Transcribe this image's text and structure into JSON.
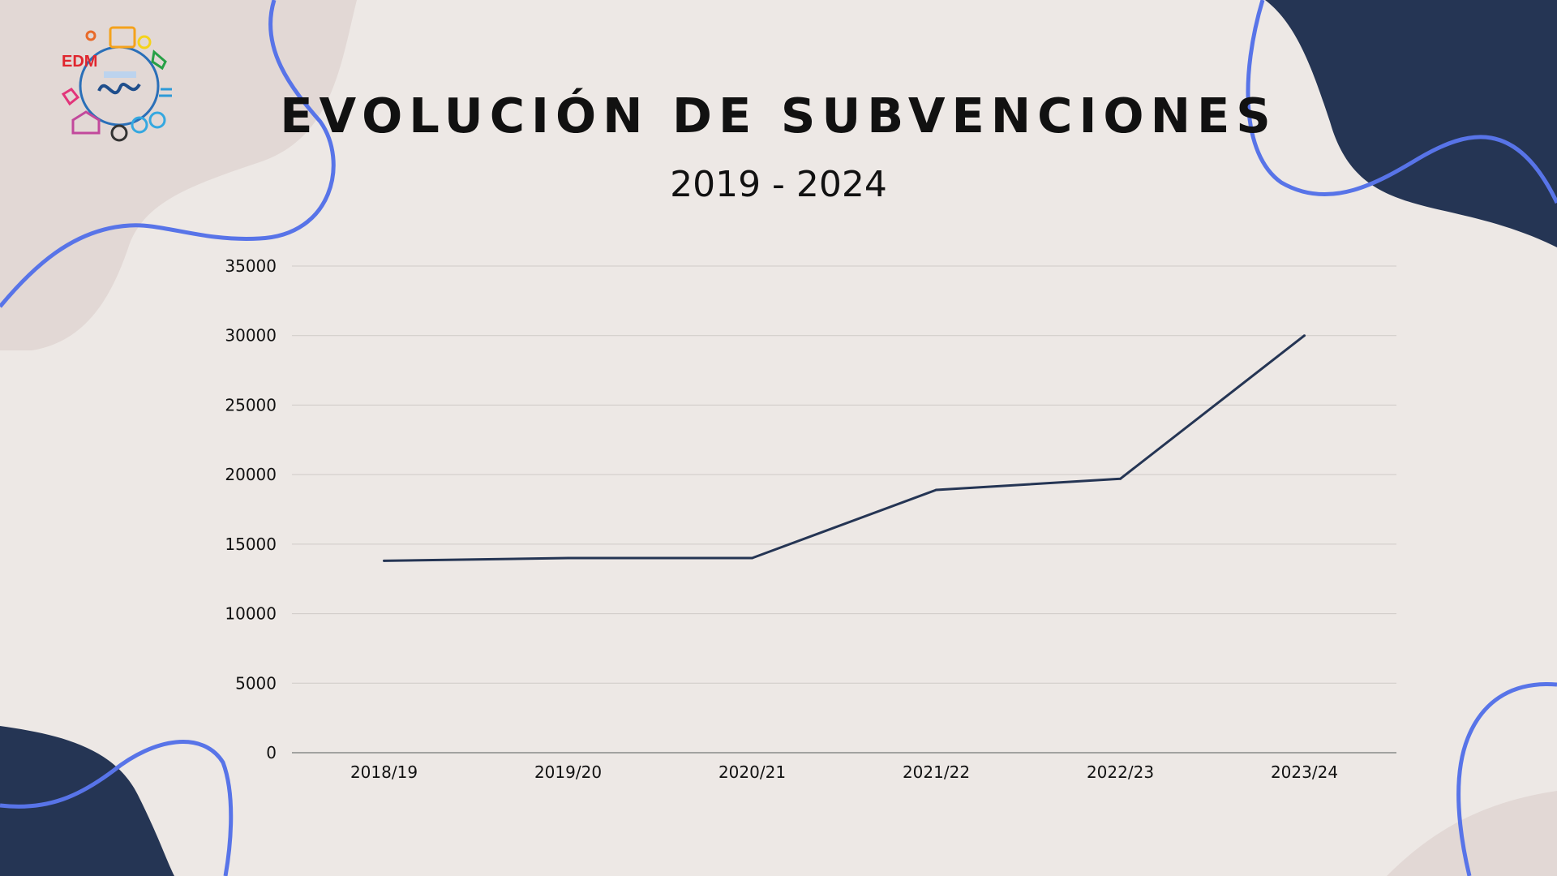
{
  "title": "EVOLUCIÓN DE SUBVENCIONES",
  "subtitle": "2019 - 2024",
  "logo": {
    "icon": "edm-sports-logo-icon",
    "text": "EDM"
  },
  "colors": {
    "background": "#ede8e5",
    "navy": "#253554",
    "accent_blue": "#5874e8",
    "blob_pink": "#e2d8d5",
    "line": "#253554"
  },
  "chart_data": {
    "type": "line",
    "title": "EVOLUCIÓN DE SUBVENCIONES",
    "subtitle": "2019 - 2024",
    "categories": [
      "2018/19",
      "2019/20",
      "2020/21",
      "2021/22",
      "2022/23",
      "2023/24"
    ],
    "series": [
      {
        "values": [
          13800,
          14000,
          14000,
          18900,
          19700,
          30000
        ]
      }
    ],
    "yticks": [
      "35000",
      "30000",
      "25000",
      "20000",
      "15000",
      "10000",
      "5000",
      "0"
    ],
    "ylim": [
      0,
      35000
    ],
    "grid": true,
    "legend": "none",
    "xlabel": "",
    "ylabel": ""
  }
}
